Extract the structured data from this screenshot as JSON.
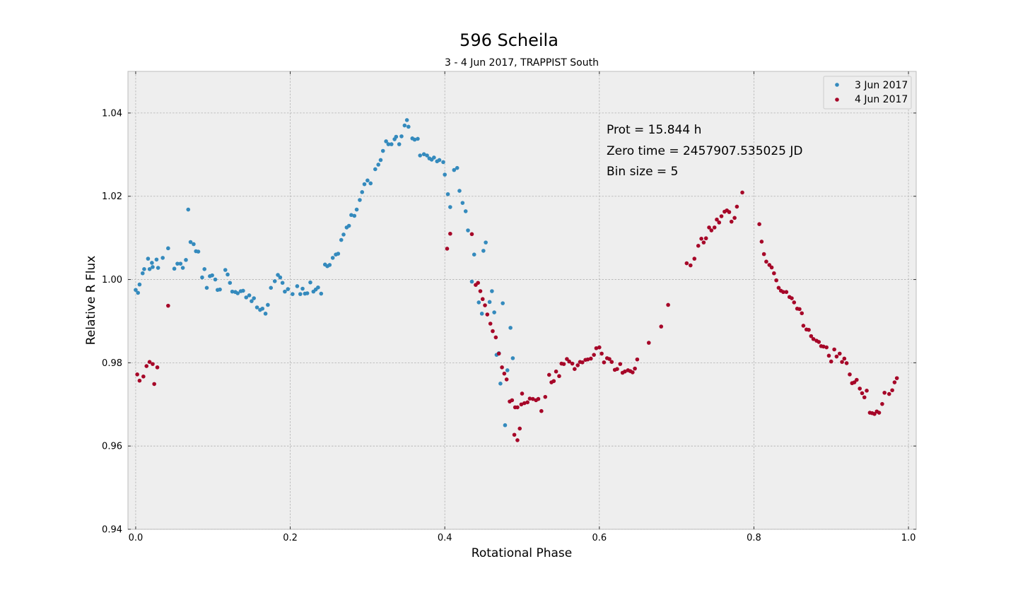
{
  "chart_data": {
    "type": "scatter",
    "title": "596 Scheila",
    "subtitle": "3 - 4 Jun 2017, TRAPPIST South",
    "xlabel": "Rotational Phase",
    "ylabel": "Relative R Flux",
    "xlim": [
      -0.01,
      1.01
    ],
    "ylim": [
      0.94,
      1.05
    ],
    "xticks": [
      {
        "v": 0.0,
        "label": "0.0"
      },
      {
        "v": 0.2,
        "label": "0.2"
      },
      {
        "v": 0.4,
        "label": "0.4"
      },
      {
        "v": 0.6,
        "label": "0.6"
      },
      {
        "v": 0.8,
        "label": "0.8"
      },
      {
        "v": 1.0,
        "label": "1.0"
      }
    ],
    "yticks": [
      {
        "v": 0.94,
        "label": "0.94"
      },
      {
        "v": 0.96,
        "label": "0.96"
      },
      {
        "v": 0.98,
        "label": "0.98"
      },
      {
        "v": 1.0,
        "label": "1.00"
      },
      {
        "v": 1.02,
        "label": "1.02"
      },
      {
        "v": 1.04,
        "label": "1.04"
      }
    ],
    "grid": true,
    "legend_position": "top-right",
    "annotations": [
      "Prot = 15.844 h",
      "Zero time = 2457907.535025 JD",
      "Bin size = 5"
    ],
    "series": [
      {
        "name": "3 Jun 2017",
        "color": "#348ABD",
        "points": [
          [
            0.0,
            0.9975
          ],
          [
            0.003,
            0.9968
          ],
          [
            0.005,
            0.9988
          ],
          [
            0.009,
            1.0015
          ],
          [
            0.011,
            1.0025
          ],
          [
            0.016,
            1.005
          ],
          [
            0.018,
            1.0025
          ],
          [
            0.021,
            1.004
          ],
          [
            0.022,
            1.003
          ],
          [
            0.027,
            1.0048
          ],
          [
            0.029,
            1.0028
          ],
          [
            0.035,
            1.0052
          ],
          [
            0.042,
            1.0075
          ],
          [
            0.05,
            1.0026
          ],
          [
            0.054,
            1.0038
          ],
          [
            0.058,
            1.0038
          ],
          [
            0.061,
            1.0028
          ],
          [
            0.065,
            1.0047
          ],
          [
            0.068,
            1.0168
          ],
          [
            0.071,
            1.009
          ],
          [
            0.075,
            1.0085
          ],
          [
            0.078,
            1.0068
          ],
          [
            0.081,
            1.0067
          ],
          [
            0.086,
            1.0005
          ],
          [
            0.089,
            1.0025
          ],
          [
            0.092,
            0.998
          ],
          [
            0.096,
            1.0008
          ],
          [
            0.099,
            1.001
          ],
          [
            0.103,
            1.0
          ],
          [
            0.106,
            0.9975
          ],
          [
            0.109,
            0.9976
          ],
          [
            0.116,
            1.0023
          ],
          [
            0.119,
            1.0012
          ],
          [
            0.122,
            0.9992
          ],
          [
            0.125,
            0.9971
          ],
          [
            0.129,
            0.997
          ],
          [
            0.132,
            0.9967
          ],
          [
            0.136,
            0.9972
          ],
          [
            0.139,
            0.9973
          ],
          [
            0.143,
            0.9957
          ],
          [
            0.147,
            0.9962
          ],
          [
            0.15,
            0.9948
          ],
          [
            0.153,
            0.9955
          ],
          [
            0.157,
            0.9933
          ],
          [
            0.161,
            0.9927
          ],
          [
            0.164,
            0.993
          ],
          [
            0.168,
            0.9918
          ],
          [
            0.171,
            0.9939
          ],
          [
            0.175,
            0.998
          ],
          [
            0.18,
            0.9996
          ],
          [
            0.184,
            1.0011
          ],
          [
            0.187,
            1.0005
          ],
          [
            0.19,
            0.9992
          ],
          [
            0.193,
            0.9971
          ],
          [
            0.197,
            0.9977
          ],
          [
            0.203,
            0.9965
          ],
          [
            0.209,
            0.9984
          ],
          [
            0.213,
            0.9965
          ],
          [
            0.216,
            0.9978
          ],
          [
            0.219,
            0.9966
          ],
          [
            0.222,
            0.9967
          ],
          [
            0.226,
            0.9993
          ],
          [
            0.23,
            0.9971
          ],
          [
            0.233,
            0.9976
          ],
          [
            0.236,
            0.9981
          ],
          [
            0.24,
            0.9966
          ],
          [
            0.245,
            1.0036
          ],
          [
            0.248,
            1.0032
          ],
          [
            0.251,
            1.0035
          ],
          [
            0.255,
            1.0052
          ],
          [
            0.259,
            1.006
          ],
          [
            0.262,
            1.0062
          ],
          [
            0.266,
            1.0095
          ],
          [
            0.269,
            1.0108
          ],
          [
            0.273,
            1.0125
          ],
          [
            0.276,
            1.0129
          ],
          [
            0.279,
            1.0155
          ],
          [
            0.283,
            1.0153
          ],
          [
            0.286,
            1.0168
          ],
          [
            0.29,
            1.0191
          ],
          [
            0.293,
            1.021
          ],
          [
            0.296,
            1.0229
          ],
          [
            0.3,
            1.0238
          ],
          [
            0.304,
            1.0231
          ],
          [
            0.31,
            1.0265
          ],
          [
            0.314,
            1.0276
          ],
          [
            0.317,
            1.0287
          ],
          [
            0.32,
            1.0309
          ],
          [
            0.324,
            1.0332
          ],
          [
            0.327,
            1.0325
          ],
          [
            0.331,
            1.0325
          ],
          [
            0.335,
            1.0337
          ],
          [
            0.337,
            1.0343
          ],
          [
            0.341,
            1.0325
          ],
          [
            0.344,
            1.0344
          ],
          [
            0.348,
            1.037
          ],
          [
            0.351,
            1.0383
          ],
          [
            0.353,
            1.0367
          ],
          [
            0.358,
            1.0339
          ],
          [
            0.361,
            1.0336
          ],
          [
            0.365,
            1.0338
          ],
          [
            0.368,
            1.0298
          ],
          [
            0.373,
            1.0301
          ],
          [
            0.377,
            1.0298
          ],
          [
            0.38,
            1.0291
          ],
          [
            0.383,
            1.0288
          ],
          [
            0.386,
            1.0293
          ],
          [
            0.39,
            1.0284
          ],
          [
            0.393,
            1.0287
          ],
          [
            0.398,
            1.0282
          ],
          [
            0.4,
            1.0252
          ],
          [
            0.404,
            1.0205
          ],
          [
            0.407,
            1.0174
          ],
          [
            0.412,
            1.0263
          ],
          [
            0.416,
            1.0268
          ],
          [
            0.419,
            1.0213
          ],
          [
            0.423,
            1.0184
          ],
          [
            0.427,
            1.0164
          ],
          [
            0.43,
            1.0118
          ],
          [
            0.438,
            1.006
          ],
          [
            0.435,
            0.9995
          ],
          [
            0.444,
            0.9945
          ],
          [
            0.448,
            0.9918
          ],
          [
            0.45,
            1.0069
          ],
          [
            0.453,
            1.0089
          ],
          [
            0.458,
            0.9946
          ],
          [
            0.461,
            0.9972
          ],
          [
            0.464,
            0.9921
          ],
          [
            0.467,
            0.9819
          ],
          [
            0.47,
            0.9823
          ],
          [
            0.472,
            0.975
          ],
          [
            0.475,
            0.9943
          ],
          [
            0.478,
            0.965
          ],
          [
            0.481,
            0.9782
          ],
          [
            0.485,
            0.9884
          ],
          [
            0.488,
            0.9811
          ]
        ]
      },
      {
        "name": "4 Jun 2017",
        "color": "#A60628",
        "points": [
          [
            0.002,
            0.9772
          ],
          [
            0.005,
            0.9757
          ],
          [
            0.01,
            0.9767
          ],
          [
            0.014,
            0.9792
          ],
          [
            0.018,
            0.9802
          ],
          [
            0.022,
            0.9797
          ],
          [
            0.024,
            0.9749
          ],
          [
            0.028,
            0.9789
          ],
          [
            0.042,
            0.9937
          ],
          [
            0.403,
            1.0074
          ],
          [
            0.407,
            1.011
          ],
          [
            0.435,
            1.0109
          ],
          [
            0.44,
            0.9987
          ],
          [
            0.443,
            0.9992
          ],
          [
            0.446,
            0.9972
          ],
          [
            0.449,
            0.9953
          ],
          [
            0.452,
            0.9938
          ],
          [
            0.455,
            0.9916
          ],
          [
            0.459,
            0.9894
          ],
          [
            0.462,
            0.9876
          ],
          [
            0.466,
            0.9861
          ],
          [
            0.47,
            0.9822
          ],
          [
            0.474,
            0.9789
          ],
          [
            0.477,
            0.9774
          ],
          [
            0.48,
            0.976
          ],
          [
            0.484,
            0.9707
          ],
          [
            0.487,
            0.971
          ],
          [
            0.491,
            0.9693
          ],
          [
            0.494,
            0.9614
          ],
          [
            0.49,
            0.9627
          ],
          [
            0.497,
            0.9642
          ],
          [
            0.494,
            0.9693
          ],
          [
            0.499,
            0.97
          ],
          [
            0.5,
            0.9726
          ],
          [
            0.503,
            0.9703
          ],
          [
            0.507,
            0.9705
          ],
          [
            0.51,
            0.9714
          ],
          [
            0.514,
            0.9713
          ],
          [
            0.518,
            0.971
          ],
          [
            0.521,
            0.9713
          ],
          [
            0.525,
            0.9684
          ],
          [
            0.53,
            0.9718
          ],
          [
            0.535,
            0.9771
          ],
          [
            0.538,
            0.9753
          ],
          [
            0.541,
            0.9756
          ],
          [
            0.544,
            0.9779
          ],
          [
            0.548,
            0.9768
          ],
          [
            0.551,
            0.9798
          ],
          [
            0.554,
            0.9797
          ],
          [
            0.558,
            0.9809
          ],
          [
            0.561,
            0.9803
          ],
          [
            0.565,
            0.9798
          ],
          [
            0.568,
            0.9785
          ],
          [
            0.572,
            0.9794
          ],
          [
            0.575,
            0.9802
          ],
          [
            0.578,
            0.9801
          ],
          [
            0.582,
            0.9807
          ],
          [
            0.585,
            0.9808
          ],
          [
            0.589,
            0.981
          ],
          [
            0.593,
            0.9819
          ],
          [
            0.596,
            0.9835
          ],
          [
            0.6,
            0.9837
          ],
          [
            0.603,
            0.9822
          ],
          [
            0.606,
            0.9801
          ],
          [
            0.61,
            0.9811
          ],
          [
            0.613,
            0.9809
          ],
          [
            0.616,
            0.9802
          ],
          [
            0.62,
            0.9783
          ],
          [
            0.623,
            0.9785
          ],
          [
            0.627,
            0.9797
          ],
          [
            0.63,
            0.9776
          ],
          [
            0.633,
            0.9779
          ],
          [
            0.637,
            0.9782
          ],
          [
            0.64,
            0.978
          ],
          [
            0.643,
            0.9777
          ],
          [
            0.646,
            0.9786
          ],
          [
            0.649,
            0.9808
          ],
          [
            0.664,
            0.9848
          ],
          [
            0.68,
            0.9887
          ],
          [
            0.689,
            0.9939
          ],
          [
            0.713,
            1.0039
          ],
          [
            0.718,
            1.0034
          ],
          [
            0.723,
            1.005
          ],
          [
            0.728,
            1.0081
          ],
          [
            0.732,
            1.0098
          ],
          [
            0.735,
            1.0089
          ],
          [
            0.738,
            1.0099
          ],
          [
            0.742,
            1.0125
          ],
          [
            0.745,
            1.0118
          ],
          [
            0.749,
            1.0125
          ],
          [
            0.752,
            1.0144
          ],
          [
            0.755,
            1.0137
          ],
          [
            0.758,
            1.0152
          ],
          [
            0.762,
            1.0163
          ],
          [
            0.765,
            1.0166
          ],
          [
            0.768,
            1.0162
          ],
          [
            0.771,
            1.0139
          ],
          [
            0.775,
            1.0148
          ],
          [
            0.778,
            1.0175
          ],
          [
            0.785,
            1.0209
          ],
          [
            0.807,
            1.0133
          ],
          [
            0.81,
            1.0091
          ],
          [
            0.813,
            1.0061
          ],
          [
            0.816,
            1.0043
          ],
          [
            0.82,
            1.0035
          ],
          [
            0.823,
            1.0029
          ],
          [
            0.826,
            1.0015
          ],
          [
            0.829,
            0.9998
          ],
          [
            0.832,
            0.998
          ],
          [
            0.835,
            0.9973
          ],
          [
            0.838,
            0.997
          ],
          [
            0.842,
            0.997
          ],
          [
            0.846,
            0.9958
          ],
          [
            0.849,
            0.9955
          ],
          [
            0.852,
            0.9945
          ],
          [
            0.856,
            0.993
          ],
          [
            0.859,
            0.9929
          ],
          [
            0.862,
            0.9919
          ],
          [
            0.864,
            0.9889
          ],
          [
            0.868,
            0.988
          ],
          [
            0.871,
            0.9879
          ],
          [
            0.874,
            0.9864
          ],
          [
            0.877,
            0.9857
          ],
          [
            0.881,
            0.9853
          ],
          [
            0.884,
            0.985
          ],
          [
            0.887,
            0.984
          ],
          [
            0.89,
            0.9839
          ],
          [
            0.894,
            0.9837
          ],
          [
            0.897,
            0.9817
          ],
          [
            0.9,
            0.9803
          ],
          [
            0.904,
            0.9832
          ],
          [
            0.907,
            0.9815
          ],
          [
            0.911,
            0.9822
          ],
          [
            0.914,
            0.9802
          ],
          [
            0.917,
            0.981
          ],
          [
            0.92,
            0.9799
          ],
          [
            0.924,
            0.9772
          ],
          [
            0.927,
            0.9751
          ],
          [
            0.93,
            0.9753
          ],
          [
            0.933,
            0.9759
          ],
          [
            0.937,
            0.9738
          ],
          [
            0.94,
            0.9727
          ],
          [
            0.943,
            0.9717
          ],
          [
            0.946,
            0.9733
          ],
          [
            0.95,
            0.968
          ],
          [
            0.953,
            0.9679
          ],
          [
            0.956,
            0.9677
          ],
          [
            0.959,
            0.9683
          ],
          [
            0.962,
            0.968
          ],
          [
            0.966,
            0.9701
          ],
          [
            0.969,
            0.9728
          ],
          [
            0.975,
            0.9725
          ],
          [
            0.979,
            0.9734
          ],
          [
            0.982,
            0.9753
          ],
          [
            0.985,
            0.9763
          ]
        ]
      }
    ]
  }
}
